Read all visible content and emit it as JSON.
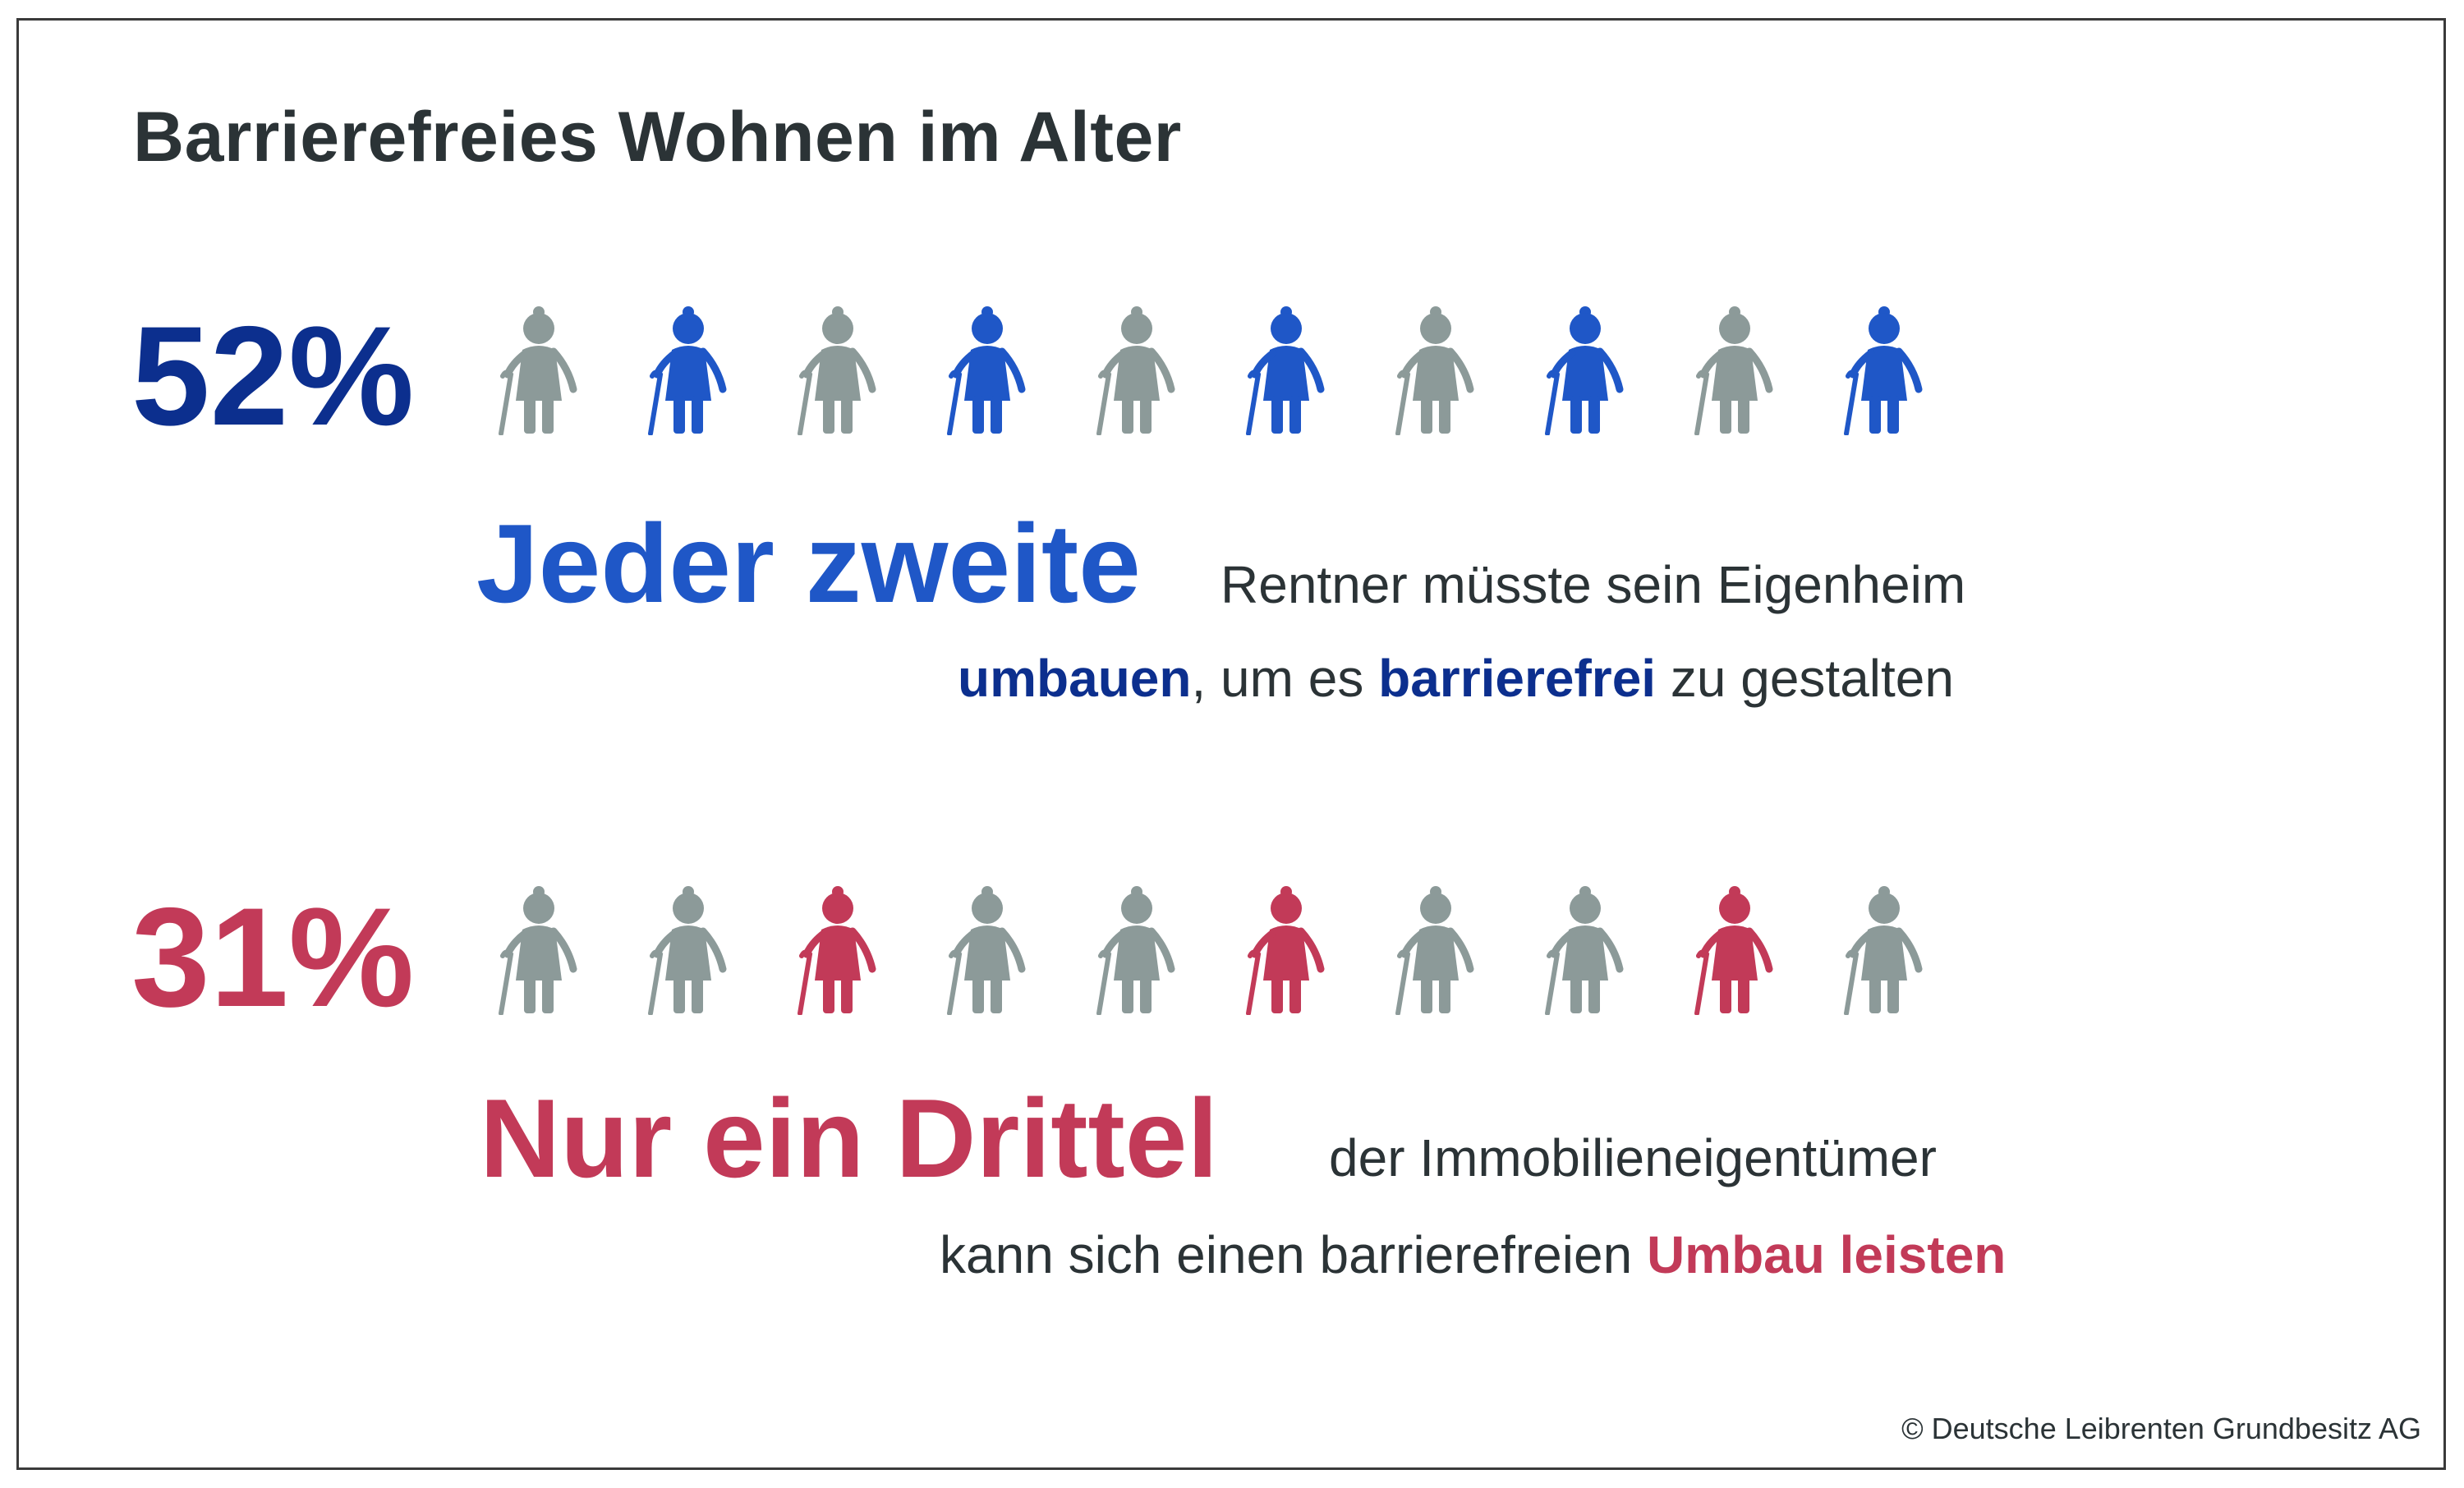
{
  "title": "Barrierefreies Wohnen im Alter",
  "colors": {
    "gray": "#8c9a99",
    "blue_icon": "#1f57c7",
    "blue_dark": "#0c2f8e",
    "red": "#c23a58",
    "text": "#2b3336"
  },
  "icon_name": "elderly-person-with-cane-icon",
  "chart_data": {
    "type": "pictogram",
    "icons_per_row": 10,
    "rows": [
      {
        "percent_label": "52%",
        "value_percent": 52,
        "highlight_color": "#1f57c7",
        "highlighted_positions": [
          2,
          4,
          6,
          8,
          10
        ],
        "headline": "Jeder zweite",
        "line1": "Rentner müsste sein Eigenheim",
        "line2_parts": [
          "umbauen",
          ", um es ",
          "barrierefrei",
          " zu gestalten"
        ]
      },
      {
        "percent_label": "31%",
        "value_percent": 31,
        "highlight_color": "#c23a58",
        "highlighted_positions": [
          3,
          6,
          9
        ],
        "headline": "Nur ein Drittel",
        "line1": "der Immobilieneigentümer",
        "line2_parts": [
          "kann sich einen barrierefreien ",
          "Umbau leisten"
        ]
      }
    ]
  },
  "copyright": "© Deutsche Leibrenten Grundbesitz AG"
}
